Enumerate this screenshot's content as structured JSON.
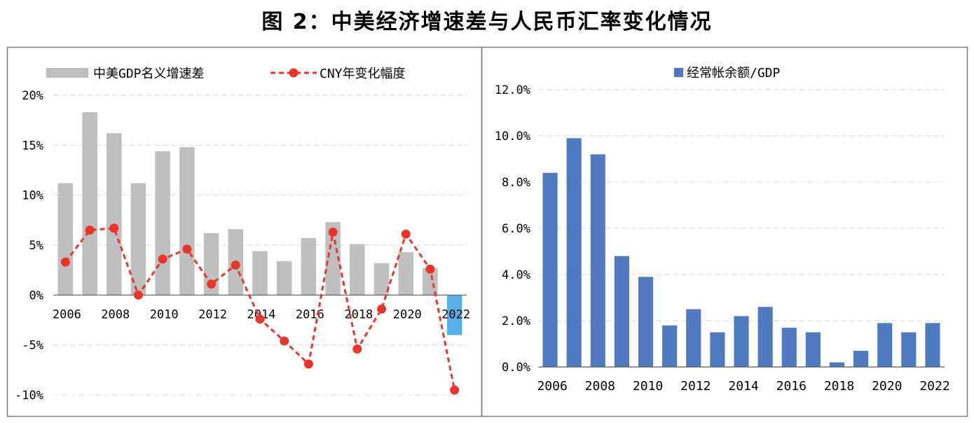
{
  "title": "图 2：中美经济增速差与人民币汇率变化情况",
  "chart_data": [
    {
      "type": "bar+line",
      "title": "",
      "categories": [
        "2006",
        "2007",
        "2008",
        "2009",
        "2010",
        "2011",
        "2012",
        "2013",
        "2014",
        "2015",
        "2016",
        "2017",
        "2018",
        "2019",
        "2020",
        "2021",
        "2022"
      ],
      "x_tick_labels": [
        "2006",
        "2008",
        "2010",
        "2012",
        "2014",
        "2016",
        "2018",
        "2020",
        "2022"
      ],
      "series": [
        {
          "name": "中美GDP名义增速差",
          "kind": "bar",
          "color": "#bfbfbf",
          "highlight_color": "#5aaee8",
          "values": [
            11.2,
            18.3,
            16.2,
            11.2,
            14.4,
            14.8,
            6.2,
            6.6,
            4.4,
            3.4,
            5.7,
            7.3,
            5.1,
            3.2,
            4.3,
            2.7,
            -4.0
          ]
        },
        {
          "name": "CNY年变化幅度",
          "kind": "line",
          "style": "dashed",
          "color": "#e8372a",
          "marker_color": "#e8372a",
          "values": [
            3.3,
            6.5,
            6.7,
            0.0,
            3.6,
            4.6,
            1.1,
            3.0,
            -2.4,
            -4.6,
            -6.9,
            6.3,
            -5.4,
            -1.4,
            6.1,
            2.6,
            -9.5
          ]
        }
      ],
      "y_tick_labels": [
        "20%",
        "15%",
        "10%",
        "5%",
        "0%",
        "-5%",
        "-10%"
      ],
      "ylim": [
        -10,
        20
      ],
      "xlabel": "",
      "ylabel": "",
      "legend": "top"
    },
    {
      "type": "bar",
      "title": "",
      "categories": [
        "2006",
        "2007",
        "2008",
        "2009",
        "2010",
        "2011",
        "2012",
        "2013",
        "2014",
        "2015",
        "2016",
        "2017",
        "2018",
        "2019",
        "2020",
        "2021",
        "2022"
      ],
      "x_tick_labels": [
        "2006",
        "2008",
        "2010",
        "2012",
        "2014",
        "2016",
        "2018",
        "2020",
        "2022"
      ],
      "series": [
        {
          "name": "经常帐余额/GDP",
          "kind": "bar",
          "color": "#4f7ac0",
          "values": [
            8.4,
            9.9,
            9.2,
            4.8,
            3.9,
            1.8,
            2.5,
            1.5,
            2.2,
            2.6,
            1.7,
            1.5,
            0.2,
            0.7,
            1.9,
            1.5,
            1.9
          ]
        }
      ],
      "y_tick_labels": [
        "12.0%",
        "10.0%",
        "8.0%",
        "6.0%",
        "4.0%",
        "2.0%",
        "0.0%"
      ],
      "ylim": [
        0,
        12
      ],
      "xlabel": "",
      "ylabel": "",
      "legend": "top"
    }
  ]
}
